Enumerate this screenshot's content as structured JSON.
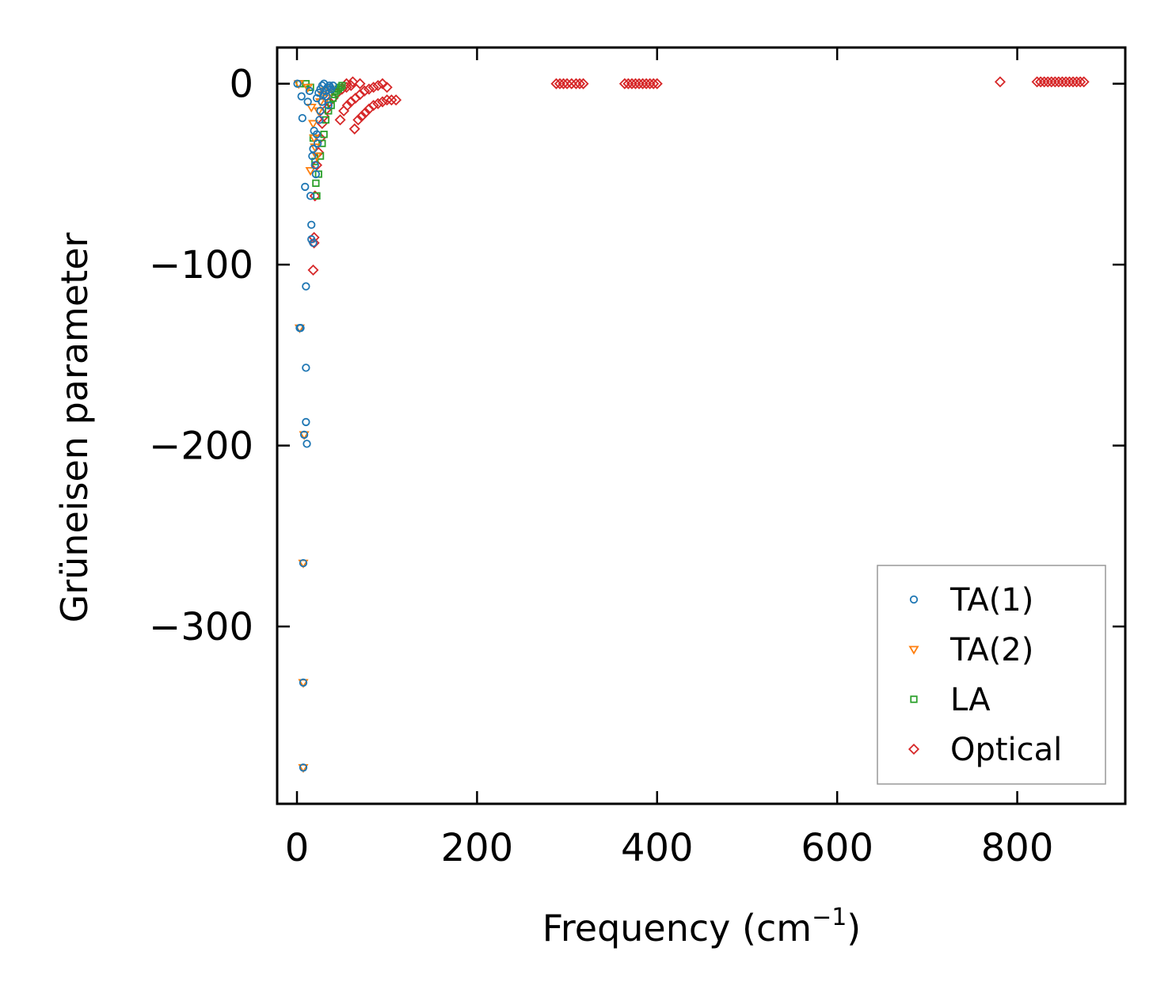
{
  "chart_data": {
    "type": "scatter",
    "title": "",
    "xlabel": "Frequency (cm",
    "xlabel_sup": "−1",
    "xlabel_close": ")",
    "ylabel": "Grüneisen parameter",
    "xlim": [
      -22,
      920
    ],
    "ylim": [
      -398,
      20
    ],
    "xticks": [
      0,
      200,
      400,
      600,
      800
    ],
    "xtick_labels": [
      "0",
      "200",
      "400",
      "600",
      "800"
    ],
    "yticks": [
      0,
      -100,
      -200,
      -300
    ],
    "ytick_labels": [
      "0",
      "−100",
      "−200",
      "−300"
    ],
    "grid": false,
    "legend_position": "bottom-right",
    "series": [
      {
        "name": "TA(1)",
        "marker": "circle",
        "color": "#1f77b4",
        "points": [
          [
            0.5,
            0
          ],
          [
            3,
            -135
          ],
          [
            4,
            -135
          ],
          [
            5,
            -7
          ],
          [
            6,
            -19
          ],
          [
            7,
            -265
          ],
          [
            7,
            -331
          ],
          [
            7,
            -378
          ],
          [
            8,
            -194
          ],
          [
            9,
            -57
          ],
          [
            10,
            -112
          ],
          [
            10,
            -157
          ],
          [
            10,
            -187
          ],
          [
            11,
            -199
          ],
          [
            12,
            -10
          ],
          [
            14,
            -4
          ],
          [
            15,
            -62
          ],
          [
            16,
            -78
          ],
          [
            16,
            -86
          ],
          [
            17,
            -40
          ],
          [
            18,
            -88
          ],
          [
            18,
            -36
          ],
          [
            19,
            -26
          ],
          [
            20,
            -45
          ],
          [
            21,
            -50
          ],
          [
            22,
            -28
          ],
          [
            23,
            -33
          ],
          [
            25,
            -20
          ],
          [
            26,
            -15
          ],
          [
            28,
            -10
          ],
          [
            30,
            -6
          ],
          [
            32,
            -4
          ],
          [
            34,
            -2
          ],
          [
            36,
            -1
          ],
          [
            38,
            -3
          ],
          [
            40,
            -1
          ],
          [
            22,
            -8
          ],
          [
            24,
            -5
          ],
          [
            26,
            -3
          ],
          [
            28,
            -1
          ],
          [
            30,
            0
          ],
          [
            33,
            -7
          ],
          [
            35,
            -12
          ],
          [
            37,
            -2
          ]
        ]
      },
      {
        "name": "TA(2)",
        "marker": "triangle-down",
        "color": "#ff7f0e",
        "points": [
          [
            2,
            0
          ],
          [
            3,
            -135
          ],
          [
            7,
            -265
          ],
          [
            7,
            -331
          ],
          [
            7,
            -378
          ],
          [
            8,
            -194
          ],
          [
            12,
            -2
          ],
          [
            15,
            -48
          ],
          [
            16,
            -13
          ],
          [
            18,
            -22
          ],
          [
            19,
            -30
          ],
          [
            20,
            -35
          ],
          [
            22,
            -40
          ],
          [
            24,
            -15
          ],
          [
            26,
            -10
          ],
          [
            28,
            -6
          ],
          [
            30,
            -4
          ],
          [
            33,
            -8
          ],
          [
            36,
            -3
          ]
        ]
      },
      {
        "name": "LA",
        "marker": "square",
        "color": "#2ca02c",
        "points": [
          [
            3,
            0
          ],
          [
            10,
            0
          ],
          [
            15,
            -2
          ],
          [
            18,
            -30
          ],
          [
            20,
            -43
          ],
          [
            21,
            -55
          ],
          [
            22,
            -62
          ],
          [
            24,
            -50
          ],
          [
            26,
            -40
          ],
          [
            28,
            -33
          ],
          [
            30,
            -28
          ],
          [
            32,
            -20
          ],
          [
            35,
            -15
          ],
          [
            38,
            -12
          ],
          [
            40,
            -8
          ],
          [
            42,
            -6
          ],
          [
            44,
            -4
          ],
          [
            46,
            -3
          ],
          [
            48,
            -2
          ],
          [
            50,
            -1
          ]
        ]
      },
      {
        "name": "Optical",
        "marker": "diamond",
        "color": "#d62728",
        "points": [
          [
            18,
            -103
          ],
          [
            19,
            -85
          ],
          [
            19,
            -88
          ],
          [
            20,
            -62
          ],
          [
            22,
            -45
          ],
          [
            24,
            -38
          ],
          [
            26,
            -30
          ],
          [
            28,
            -22
          ],
          [
            30,
            -18
          ],
          [
            33,
            -14
          ],
          [
            36,
            -10
          ],
          [
            40,
            -8
          ],
          [
            45,
            -5
          ],
          [
            50,
            -3
          ],
          [
            55,
            -2
          ],
          [
            60,
            -1
          ],
          [
            64,
            -25
          ],
          [
            68,
            -20
          ],
          [
            72,
            -18
          ],
          [
            76,
            -16
          ],
          [
            80,
            -14
          ],
          [
            85,
            -12
          ],
          [
            90,
            -11
          ],
          [
            95,
            -10
          ],
          [
            100,
            -9
          ],
          [
            105,
            -9
          ],
          [
            110,
            -9
          ],
          [
            48,
            -20
          ],
          [
            52,
            -15
          ],
          [
            56,
            -12
          ],
          [
            60,
            -10
          ],
          [
            65,
            -8
          ],
          [
            70,
            -6
          ],
          [
            75,
            -4
          ],
          [
            80,
            -3
          ],
          [
            85,
            -2
          ],
          [
            90,
            -1
          ],
          [
            95,
            0
          ],
          [
            100,
            -2
          ],
          [
            55,
            0
          ],
          [
            62,
            1
          ],
          [
            70,
            0
          ],
          [
            288,
            0
          ],
          [
            292,
            0
          ],
          [
            296,
            0
          ],
          [
            300,
            0
          ],
          [
            305,
            0
          ],
          [
            310,
            0
          ],
          [
            314,
            0
          ],
          [
            318,
            0
          ],
          [
            364,
            0
          ],
          [
            368,
            0
          ],
          [
            372,
            0
          ],
          [
            376,
            0
          ],
          [
            380,
            0
          ],
          [
            384,
            0
          ],
          [
            388,
            0
          ],
          [
            392,
            0
          ],
          [
            396,
            0
          ],
          [
            400,
            0
          ],
          [
            781,
            1
          ],
          [
            822,
            1
          ],
          [
            826,
            1
          ],
          [
            830,
            1
          ],
          [
            834,
            1
          ],
          [
            838,
            1
          ],
          [
            842,
            1
          ],
          [
            846,
            1
          ],
          [
            850,
            1
          ],
          [
            854,
            1
          ],
          [
            858,
            1
          ],
          [
            862,
            1
          ],
          [
            866,
            1
          ],
          [
            870,
            1
          ],
          [
            874,
            1
          ]
        ]
      }
    ]
  }
}
